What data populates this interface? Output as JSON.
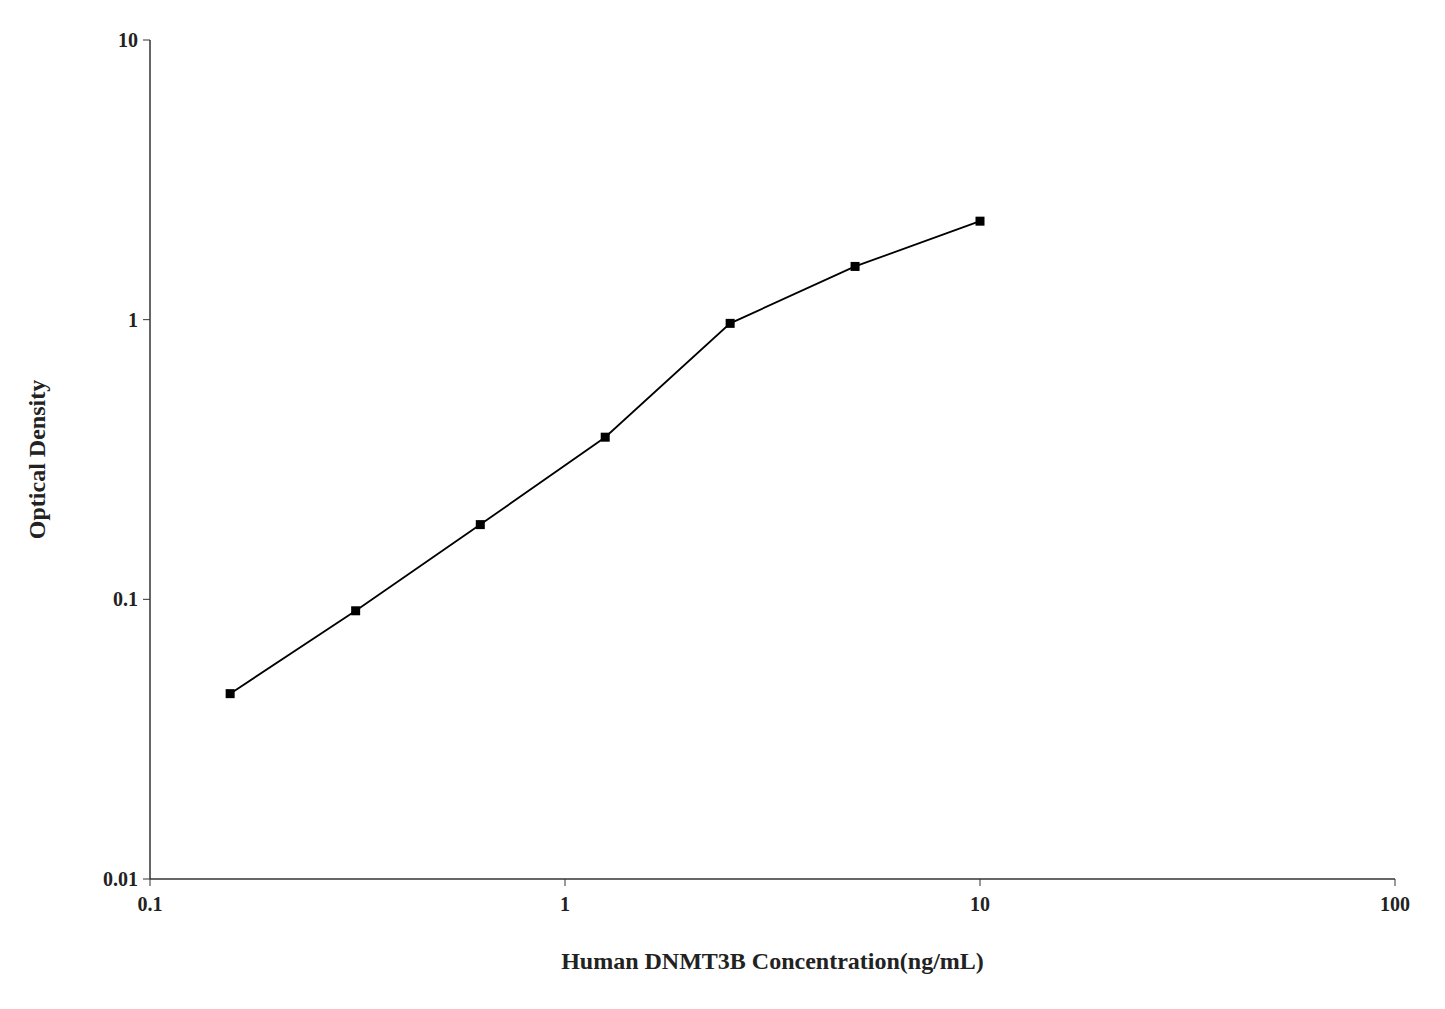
{
  "chart_data": {
    "type": "line",
    "x": [
      0.156,
      0.313,
      0.625,
      1.25,
      2.5,
      5.0,
      10.0
    ],
    "values": [
      0.046,
      0.091,
      0.185,
      0.38,
      0.97,
      1.55,
      2.25
    ],
    "xlabel": "Human DNMT3B Concentration(ng/mL)",
    "ylabel": "Optical Density",
    "xlim": [
      0.1,
      100
    ],
    "ylim": [
      0.01,
      10
    ],
    "xticks": [
      0.1,
      1,
      10,
      100
    ],
    "yticks": [
      0.01,
      0.1,
      1,
      10
    ],
    "log": true,
    "grid": false,
    "color": "#000000",
    "marker": "square"
  }
}
